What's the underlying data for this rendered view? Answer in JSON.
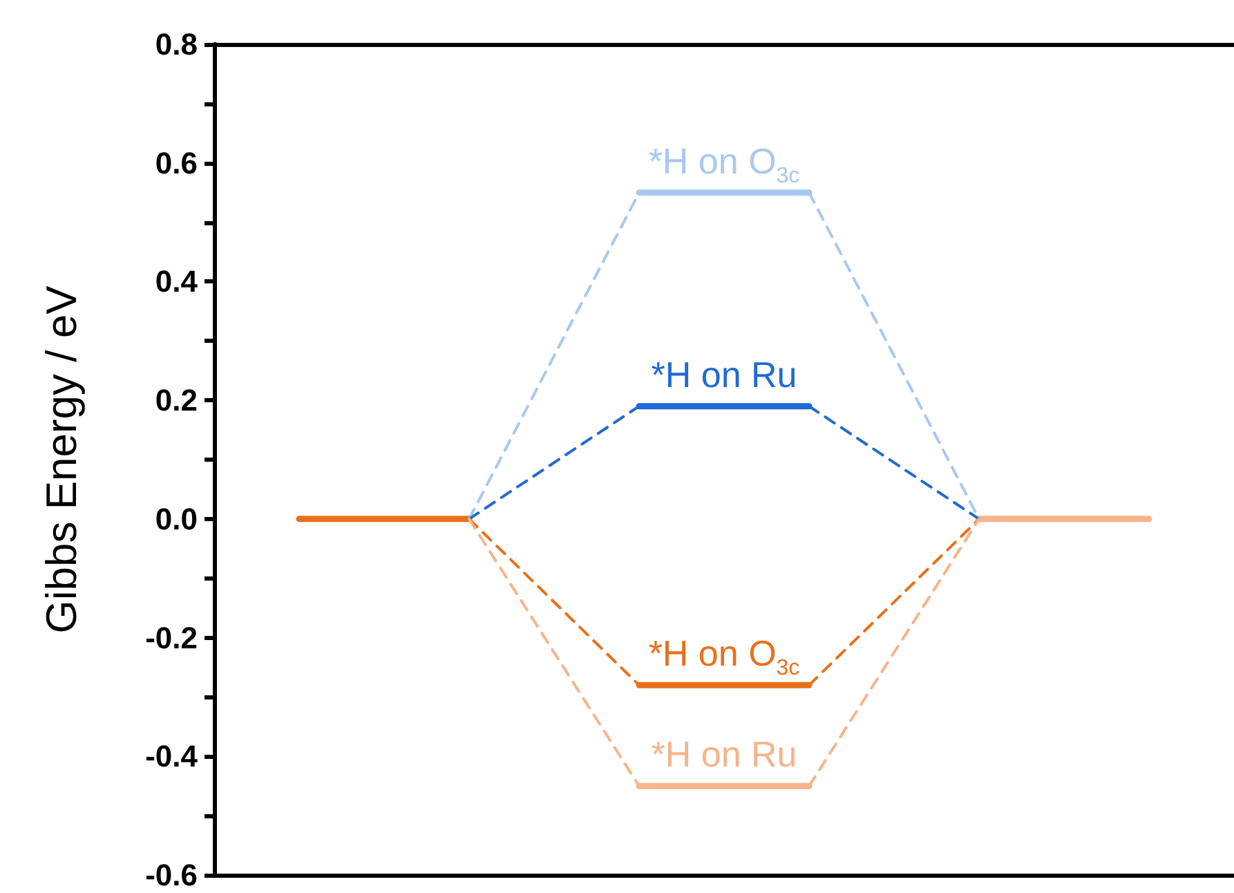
{
  "chart_data": {
    "type": "line",
    "ylabel": "Gibbs Energy / eV",
    "categories": [
      null,
      null,
      null,
      null,
      null,
      null
    ],
    "ylim": [
      -0.6,
      0.8
    ],
    "yticks": [
      -0.6,
      {
        "value": -0.5,
        "label": null
      },
      -0.4,
      {
        "value": -0.3,
        "label": null
      },
      -0.2,
      {
        "value": -0.1,
        "label": null
      },
      {
        "value": 0,
        "label": "0.0"
      },
      {
        "value": 0.1,
        "label": null
      },
      0.2,
      {
        "value": 0.3,
        "label": null
      },
      0.4,
      {
        "value": 0.5,
        "label": null
      },
      0.6,
      {
        "value": 0.7,
        "label": null
      },
      0.8
    ],
    "tick_labels": "y",
    "marker": "none",
    "line_style": "solid",
    "series": [
      {
        "color": "#e8701a",
        "values": [
          0,
          0,
          null,
          null,
          null,
          null
        ]
      },
      {
        "color": "#f6b48a",
        "values": [
          null,
          null,
          null,
          null,
          0,
          0
        ]
      },
      {
        "name": "*H on O$_{3c}$",
        "color": "#a8c8f0",
        "values": [
          null,
          null,
          0.55,
          0.55,
          null,
          null
        ]
      },
      {
        "name": "*H on Ru",
        "color": "#1f6ad6",
        "values": [
          null,
          null,
          0.19,
          0.19,
          null,
          null
        ]
      },
      {
        "name": "*H on O$_{3c}$",
        "color": "#e8701a",
        "values": [
          null,
          null,
          -0.28,
          -0.28,
          null,
          null
        ]
      },
      {
        "name": "*H on Ru",
        "color": "#f6b48a",
        "values": [
          null,
          null,
          -0.45,
          -0.45,
          null,
          null
        ]
      },
      {
        "color": "#a8c8f0",
        "line_style": "dashed",
        "values": [
          null,
          0,
          0.55,
          null,
          null,
          null
        ]
      },
      {
        "color": "#a8c8f0",
        "line_style": "dashed",
        "values": [
          null,
          null,
          null,
          0.55,
          0,
          null
        ]
      },
      {
        "color": "#1f6ad6",
        "line_style": "dashed",
        "values": [
          null,
          0,
          0.19,
          null,
          null,
          null
        ]
      },
      {
        "color": "#1f6ad6",
        "line_style": "dashed",
        "values": [
          null,
          null,
          null,
          0.19,
          0,
          null
        ]
      },
      {
        "color": "#e8701a",
        "line_style": "dashed",
        "values": [
          null,
          0,
          -0.28,
          null,
          null,
          null
        ]
      },
      {
        "color": "#e8701a",
        "line_style": "dashed",
        "values": [
          null,
          null,
          null,
          -0.28,
          0,
          null
        ]
      },
      {
        "color": "#f6b48a",
        "line_style": "dashed",
        "values": [
          null,
          0,
          -0.45,
          null,
          null,
          null
        ]
      },
      {
        "color": "#f6b48a",
        "line_style": "dashed",
        "values": [
          null,
          null,
          null,
          -0.45,
          0,
          null
        ]
      }
    ]
  }
}
